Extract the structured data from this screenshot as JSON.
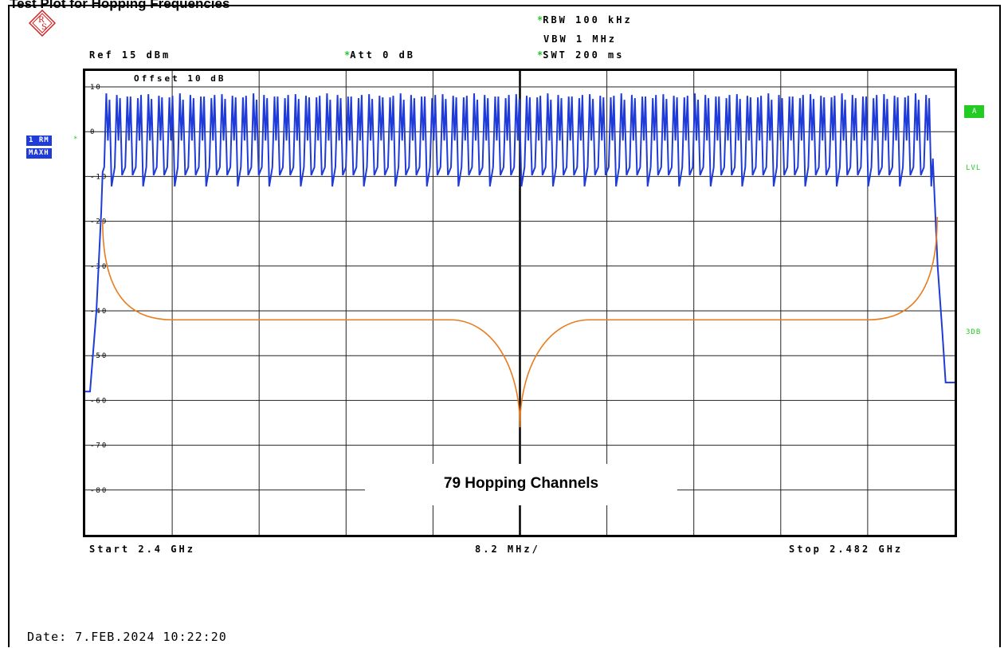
{
  "header": {
    "title": "Test Plot for Hopping Frequencies",
    "rbw": "RBW  100 kHz",
    "vbw": "VBW  1 MHz",
    "swt": "SWT  200 ms",
    "ref": "Ref  15 dBm",
    "att": "Att  0 dB",
    "offset": "Offset  10 dB"
  },
  "logo": {
    "letters": "RS",
    "name": "rohde-schwarz-logo"
  },
  "markers": {
    "trace": "1 RM",
    "detector": "MAXH",
    "a_badge": "A",
    "lvl": "LVL",
    "db3": "3DB"
  },
  "footer": {
    "start": "Start  2.4 GHz",
    "span_div": "8.2 MHz/",
    "stop": "Stop  2.482 GHz",
    "date": "Date:  7.FEB.2024   10:22:20"
  },
  "annotation": "79 Hopping Channels",
  "colors": {
    "trace": "#1f3bd8",
    "limit_line": "#e87c1e",
    "grid": "#000000",
    "accent_green": "#22cc22"
  },
  "chart_data": {
    "type": "line",
    "title": "",
    "xlabel": "",
    "ylabel": "",
    "xlim_ghz": [
      2.4,
      2.482
    ],
    "ylim": [
      -90,
      10
    ],
    "y_ticks": [
      "10",
      "0",
      "-10",
      "-20",
      "-30",
      "-40",
      "-50",
      "-60",
      "-70",
      "-80"
    ],
    "x_divisions": 10,
    "series": [
      {
        "name": "",
        "style": "hopping-channel-spectrum",
        "channel_count": 79,
        "peak_dbm": 0,
        "floor_dbm": -9,
        "values_summary": "79 periodic channel peaks near 0 dBm, valleys near -9 dBm, roll-off to about -58 dBm at both edges"
      },
      {
        "name": "",
        "style": "limit-curve",
        "x_frac": [
          0.02,
          0.06,
          0.1,
          0.42,
          0.5,
          0.58,
          0.9,
          0.94,
          0.98
        ],
        "y_dbm": [
          -20,
          -37,
          -42,
          -42,
          -66,
          -42,
          -42,
          -37,
          -19
        ]
      }
    ]
  }
}
